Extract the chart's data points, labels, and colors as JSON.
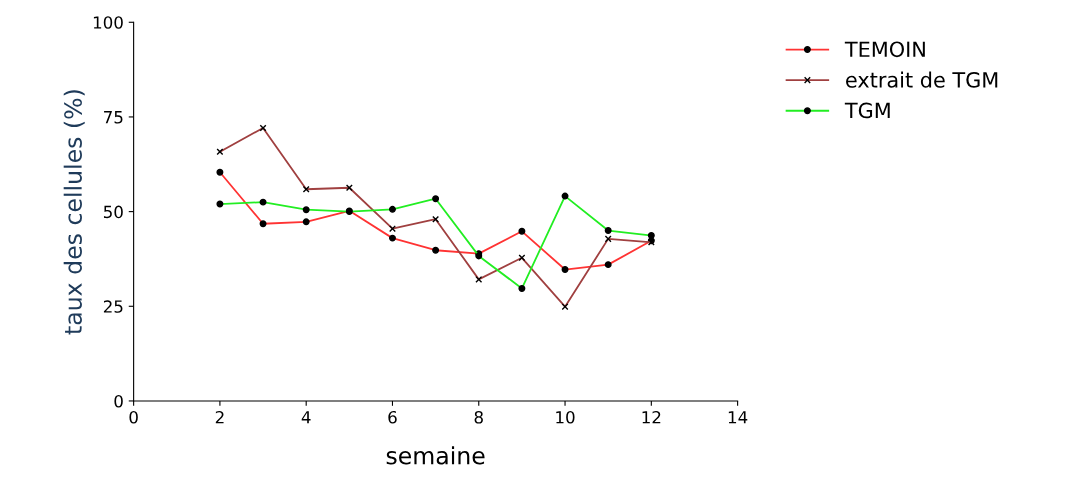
{
  "chart_data": {
    "type": "line",
    "xlabel": "semaine",
    "ylabel": "taux des cellules (%)",
    "x": [
      2,
      3,
      4,
      5,
      6,
      7,
      8,
      9,
      10,
      11,
      12
    ],
    "xlim": [
      0,
      14
    ],
    "xticks": [
      0,
      2,
      4,
      6,
      8,
      10,
      12,
      14
    ],
    "ylim": [
      0,
      100
    ],
    "yticks": [
      0,
      25,
      50,
      75,
      100
    ],
    "grid": false,
    "legend": "top right",
    "series": [
      {
        "name": "TEMOIN",
        "color": "#ff3333",
        "marker": "circle",
        "values": [
          60.4,
          46.8,
          47.3,
          50.2,
          43,
          39.8,
          38.9,
          44.8,
          34.7,
          36,
          42.3
        ]
      },
      {
        "name": "extrait de TGM",
        "color": "#a04040",
        "marker": "cross",
        "values": [
          65.8,
          72.1,
          55.9,
          56.3,
          45.5,
          48,
          32.1,
          37.8,
          24.9,
          42.8,
          41.9
        ]
      },
      {
        "name": "TGM",
        "color": "#22ee22",
        "marker": "circle",
        "values": [
          52,
          52.5,
          50.5,
          50,
          50.6,
          53.4,
          38.3,
          29.7,
          54.1,
          45,
          43.7
        ]
      }
    ]
  }
}
